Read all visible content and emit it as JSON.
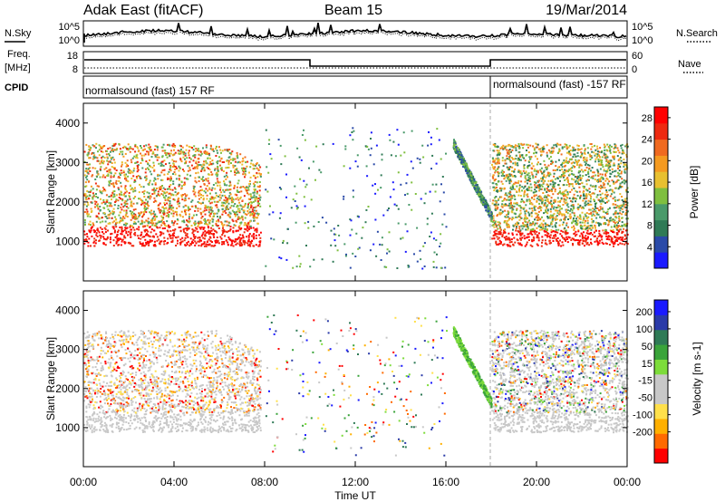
{
  "header": {
    "station": "Adak East (fitACF)",
    "beam": "Beam 15",
    "date": "19/Mar/2014"
  },
  "left_labels": {
    "nsky": "N.Sky",
    "freq_line1": "Freq.",
    "freq_line2": "[MHz]",
    "cpid": "CPID"
  },
  "right_labels": {
    "nsearch": "N.Search",
    "nave": "Nave"
  },
  "noise_panel": {
    "left_ticks": [
      "10^5",
      "10^0"
    ],
    "right_ticks": [
      "10^5",
      "10^0"
    ]
  },
  "freq_panel": {
    "left_ticks": [
      "18",
      "8"
    ],
    "right_ticks": [
      "60",
      "0"
    ],
    "segments_high_until": "10:00",
    "low_until": "18:00"
  },
  "cpid_panel": {
    "label_1": "normalsound (fast) 157 RF",
    "label_2": "normalsound (fast) -157 RF"
  },
  "colors": {
    "power_scale": [
      "#1a1aff",
      "#2a4aa8",
      "#2f7a56",
      "#4a9a6a",
      "#7fbf3f",
      "#e8c030",
      "#f59a20",
      "#f06a20",
      "#ee2a10",
      "#ff0000"
    ],
    "velocity_scale": [
      "#ff0000",
      "#ff6a00",
      "#ffb000",
      "#ffe04a",
      "#c8c8c8",
      "#c8c8c8",
      "#7ddc3a",
      "#3aa43a",
      "#2f7a56",
      "#2a3aa8",
      "#1a1aff"
    ],
    "ground_scatter": "#c8c8c8"
  },
  "chart_data": [
    {
      "type": "heatmap",
      "name": "Power",
      "ylabel": "Slant Range [km]",
      "xlabel": "Time UT",
      "x_range": [
        "00:00",
        "00:00"
      ],
      "xticks": [
        "00:00",
        "04:00",
        "08:00",
        "12:00",
        "16:00",
        "20:00",
        "00:00"
      ],
      "ylim": [
        0,
        4500
      ],
      "yticks": [
        1000,
        2000,
        3000,
        4000
      ],
      "colorbar_label": "Power [dB]",
      "colorbar_ticks": [
        4,
        8,
        12,
        16,
        20,
        24,
        28
      ],
      "colorbar_range": [
        0,
        30
      ]
    },
    {
      "type": "heatmap",
      "name": "Velocity",
      "ylabel": "Slant Range [km]",
      "xlabel": "Time UT",
      "xticks": [
        "00:00",
        "04:00",
        "08:00",
        "12:00",
        "16:00",
        "20:00",
        "00:00"
      ],
      "ylim": [
        0,
        4500
      ],
      "yticks": [
        1000,
        2000,
        3000,
        4000
      ],
      "colorbar_label": "Velocity [m s-1]",
      "colorbar_ticks": [
        -200,
        -100,
        -50,
        -15,
        15,
        50,
        100,
        200
      ],
      "colorbar_range": [
        -250,
        250
      ]
    }
  ]
}
